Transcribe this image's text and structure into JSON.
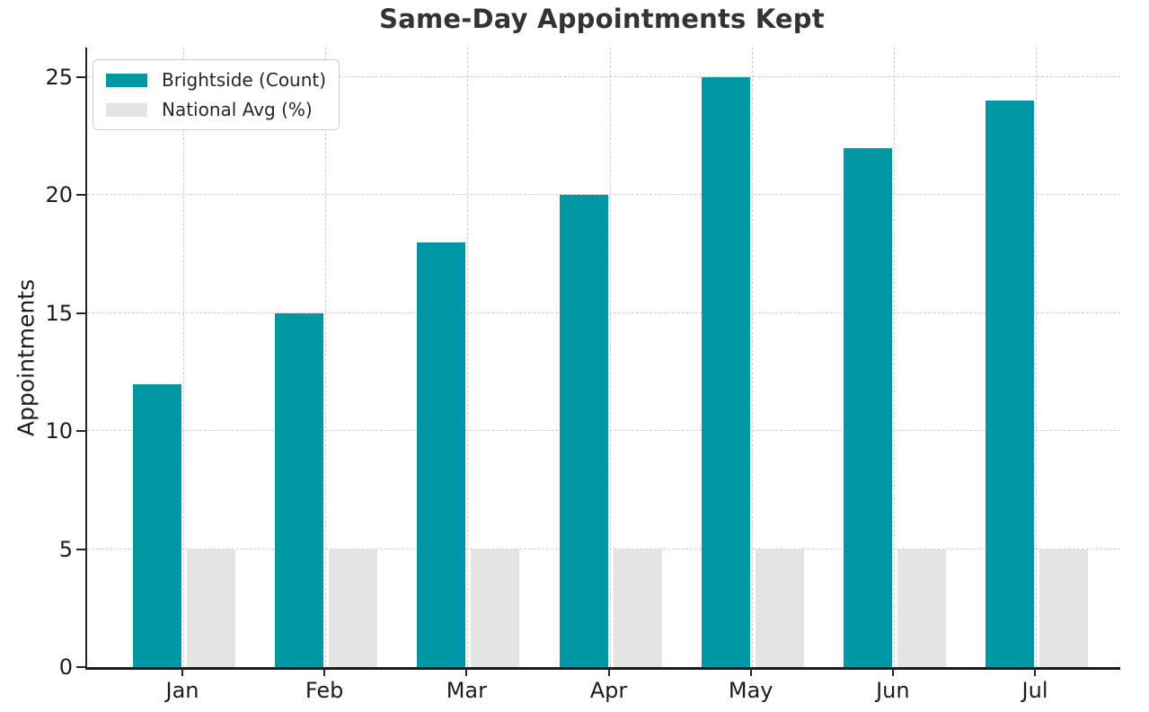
{
  "chart_data": {
    "type": "bar",
    "title": "Same-Day Appointments Kept",
    "xlabel": "",
    "ylabel": "Appointments",
    "categories": [
      "Jan",
      "Feb",
      "Mar",
      "Apr",
      "May",
      "Jun",
      "Jul"
    ],
    "series": [
      {
        "name": "Brightside (Count)",
        "values": [
          12,
          15,
          18,
          20,
          25,
          22,
          24
        ],
        "color": "#0097A5"
      },
      {
        "name": "National Avg (%)",
        "values": [
          5,
          5,
          5,
          5,
          5,
          5,
          5
        ],
        "color": "#E4E4E4"
      }
    ],
    "yticks": [
      0,
      5,
      10,
      15,
      20,
      25
    ],
    "ylim": [
      0,
      26.25
    ],
    "grid": "dashed-both-axes",
    "legend_position": "upper-left",
    "colors": {
      "grid": "#cdcdcd",
      "axis": "#262626",
      "title_text": "#333333",
      "tick_text": "#1c1c1c"
    }
  }
}
